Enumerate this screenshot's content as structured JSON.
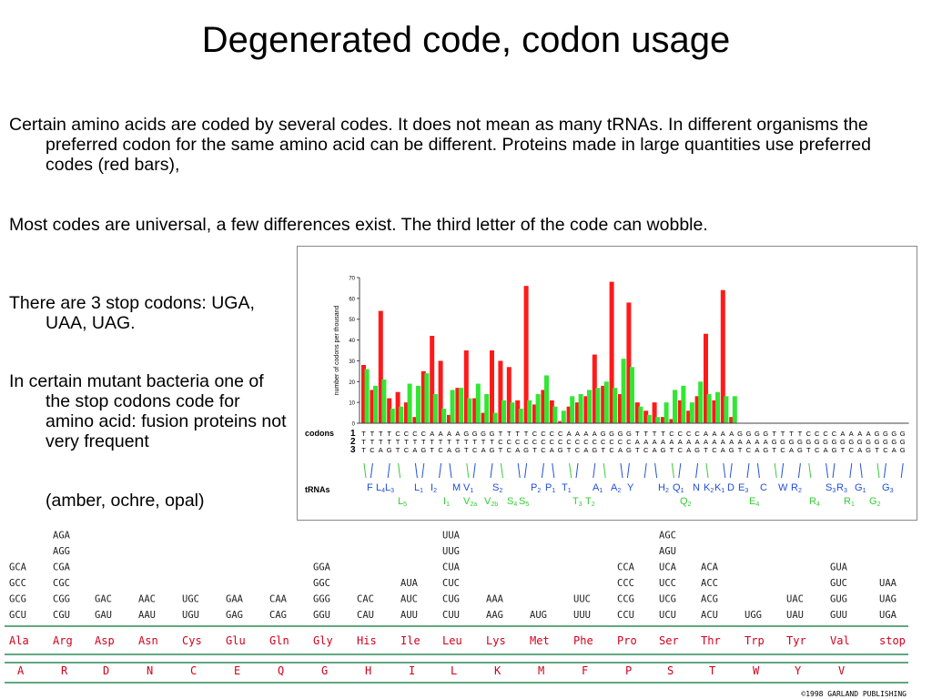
{
  "title": "Degenerated code, codon usage",
  "paragraphs": {
    "p1": "Certain amino acids are coded by several codes. It does not mean as many tRNAs. In different organisms the preferred codon for the same amino acid can be different. Proteins made in large quantities use preferred codes (red bars),",
    "p2": "Most codes are universal, a few differences exist. The third letter of the code can wobble.",
    "p3": "There are 3 stop codons: UGA, UAA, UAG.",
    "p4": "In certain mutant bacteria one of the stop codons code for amino acid: fusion proteins not very frequent",
    "p4b": "(amber, ochre, opal)"
  },
  "chart_data": {
    "type": "bar",
    "ylabel": "number of codons per thousand",
    "ylim": [
      0,
      70
    ],
    "yticks": [
      0,
      10,
      20,
      30,
      40,
      50,
      60,
      70
    ],
    "series": [
      {
        "color": "#ff1a1a",
        "values": [
          28,
          16,
          54,
          12,
          15,
          10,
          3,
          25,
          42,
          30,
          4,
          17,
          35,
          12,
          5,
          35,
          30,
          27,
          11,
          66,
          9,
          16,
          11,
          1,
          8,
          10,
          13,
          33,
          18,
          68,
          14,
          58,
          10,
          6,
          10,
          3,
          2,
          11,
          6,
          13,
          43,
          11,
          64,
          3,
          0,
          0,
          0,
          0,
          0,
          0,
          0,
          0,
          0,
          0,
          0,
          0,
          0,
          0,
          0,
          0,
          0,
          0,
          0,
          0
        ]
      },
      {
        "color": "#33e633",
        "values": [
          26,
          18,
          21,
          7,
          8,
          19,
          18,
          24,
          14,
          7,
          16,
          17,
          12,
          19,
          14,
          5,
          11,
          10,
          7,
          11,
          14,
          23,
          8,
          6,
          13,
          14,
          16,
          17,
          20,
          17,
          31,
          27,
          8,
          4,
          3,
          10,
          16,
          18,
          10,
          20,
          14,
          15,
          13,
          13,
          0,
          0,
          0,
          0,
          0,
          0,
          0,
          0,
          0,
          0,
          0,
          0,
          0,
          0,
          0,
          0,
          0,
          0,
          0,
          0
        ]
      }
    ],
    "row_labels": {
      "codons": "codons",
      "trnas": "tRNAs"
    },
    "codon_rows": {
      "r1": "TTTTCCCCAAAAGGGGTTTTCCCCAAAAGGGGTTTTCCCCAAAAGGGGTTTTCCCCAAAAGGGG",
      "r2": "TTTTTTTTTTTTTTTTCCCCCCCCCCCCCCCCAAAAAAAAAAAAAAAAGGGGGGGGGGGGGGGG",
      "r3": "TCAGTCAGTCAGTCAGTCAGTCAGTCAGTCAGTCAGTCAGTCAGTCAGTCAGTCAGTCAGTCAG",
      "position_numbers": [
        "1",
        "2",
        "3"
      ]
    },
    "trna_labels_top": [
      {
        "t": "F",
        "c": "#1f4ed8"
      },
      {
        "t": "L",
        "s": "4",
        "c": "#1f4ed8"
      },
      {
        "t": "L",
        "s": "3",
        "c": "#1f4ed8"
      },
      {
        "t": "L",
        "s": "1",
        "c": "#1f4ed8"
      },
      {
        "t": "I",
        "s": "2",
        "c": "#1f4ed8"
      },
      {
        "t": "M",
        "c": "#1f4ed8"
      },
      {
        "t": "V",
        "s": "1",
        "c": "#1f4ed8"
      },
      {
        "t": "S",
        "s": "2",
        "c": "#1f4ed8"
      },
      {
        "t": "P",
        "s": "2",
        "c": "#1f4ed8"
      },
      {
        "t": "P",
        "s": "1",
        "c": "#1f4ed8"
      },
      {
        "t": "T",
        "s": "1",
        "c": "#1f4ed8"
      },
      {
        "t": "A",
        "s": "1",
        "c": "#1f4ed8"
      },
      {
        "t": "A",
        "s": "2",
        "c": "#1f4ed8"
      },
      {
        "t": "Y",
        "c": "#1f4ed8"
      },
      {
        "t": "H",
        "s": "2",
        "c": "#1f4ed8"
      },
      {
        "t": "Q",
        "s": "1",
        "c": "#1f4ed8"
      },
      {
        "t": "N",
        "c": "#1f4ed8"
      },
      {
        "t": "K",
        "s": "2",
        "c": "#1f4ed8"
      },
      {
        "t": "K",
        "s": "1",
        "c": "#1f4ed8"
      },
      {
        "t": "D",
        "c": "#1f4ed8"
      },
      {
        "t": "E",
        "s": "3",
        "c": "#1f4ed8"
      },
      {
        "t": "C",
        "c": "#1f4ed8"
      },
      {
        "t": "W",
        "c": "#1f4ed8"
      },
      {
        "t": "R",
        "s": "2",
        "c": "#1f4ed8"
      },
      {
        "t": "S",
        "s": "3",
        "c": "#1f4ed8"
      },
      {
        "t": "R",
        "s": "3",
        "c": "#1f4ed8"
      },
      {
        "t": "G",
        "s": "1",
        "c": "#1f4ed8"
      },
      {
        "t": "G",
        "s": "3",
        "c": "#1f4ed8"
      }
    ],
    "trna_labels_bottom": [
      {
        "t": "L",
        "s": "5"
      },
      {
        "t": "I",
        "s": "1"
      },
      {
        "t": "V",
        "s": "2a"
      },
      {
        "t": "V",
        "s": "2b"
      },
      {
        "t": "S",
        "s": "4"
      },
      {
        "t": "S",
        "s": "5"
      },
      {
        "t": "T",
        "s": "3"
      },
      {
        "t": "T",
        "s": "2"
      },
      {
        "t": "Q",
        "s": "2"
      },
      {
        "t": "E",
        "s": "4"
      },
      {
        "t": "R",
        "s": "4"
      },
      {
        "t": "R",
        "s": "1"
      },
      {
        "t": "G",
        "s": "2"
      }
    ]
  },
  "codon_table": {
    "columns": [
      {
        "codons": [
          "GCA",
          "GCC",
          "GCG",
          "GCU"
        ],
        "aa3": "Ala",
        "aa1": "A"
      },
      {
        "codons": [
          "AGA",
          "AGG",
          "CGA",
          "CGC",
          "CGG",
          "CGU"
        ],
        "aa3": "Arg",
        "aa1": "R"
      },
      {
        "codons": [
          "GAC",
          "GAU"
        ],
        "aa3": "Asp",
        "aa1": "D"
      },
      {
        "codons": [
          "AAC",
          "AAU"
        ],
        "aa3": "Asn",
        "aa1": "N"
      },
      {
        "codons": [
          "UGC",
          "UGU"
        ],
        "aa3": "Cys",
        "aa1": "C"
      },
      {
        "codons": [
          "GAA",
          "GAG"
        ],
        "aa3": "Glu",
        "aa1": "E"
      },
      {
        "codons": [
          "CAA",
          "CAG"
        ],
        "aa3": "Gln",
        "aa1": "Q"
      },
      {
        "codons": [
          "GGA",
          "GGC",
          "GGG",
          "GGU"
        ],
        "aa3": "Gly",
        "aa1": "G"
      },
      {
        "codons": [
          "CAC",
          "CAU"
        ],
        "aa3": "His",
        "aa1": "H"
      },
      {
        "codons": [
          "AUA",
          "AUC",
          "AUU"
        ],
        "aa3": "Ile",
        "aa1": "I"
      },
      {
        "codons": [
          "UUA",
          "UUG",
          "CUA",
          "CUC",
          "CUG",
          "CUU"
        ],
        "aa3": "Leu",
        "aa1": "L"
      },
      {
        "codons": [
          "AAA",
          "AAG"
        ],
        "aa3": "Lys",
        "aa1": "K"
      },
      {
        "codons": [
          "AUG"
        ],
        "aa3": "Met",
        "aa1": "M"
      },
      {
        "codons": [
          "UUC",
          "UUU"
        ],
        "aa3": "Phe",
        "aa1": "F"
      },
      {
        "codons": [
          "CCA",
          "CCC",
          "CCG",
          "CCU"
        ],
        "aa3": "Pro",
        "aa1": "P"
      },
      {
        "codons": [
          "AGC",
          "AGU",
          "UCA",
          "UCC",
          "UCG",
          "UCU"
        ],
        "aa3": "Ser",
        "aa1": "S"
      },
      {
        "codons": [
          "ACA",
          "ACC",
          "ACG",
          "ACU"
        ],
        "aa3": "Thr",
        "aa1": "T"
      },
      {
        "codons": [
          "UGG"
        ],
        "aa3": "Trp",
        "aa1": "W"
      },
      {
        "codons": [
          "UAC",
          "UAU"
        ],
        "aa3": "Tyr",
        "aa1": "Y"
      },
      {
        "codons": [
          "GUA",
          "GUC",
          "GUG",
          "GUU"
        ],
        "aa3": "Val",
        "aa1": "V"
      },
      {
        "codons": [
          "UAA",
          "UAG",
          "UGA"
        ],
        "aa3": "stop",
        "aa1": ""
      }
    ],
    "copyright": "©1998 GARLAND PUBLISHING"
  }
}
